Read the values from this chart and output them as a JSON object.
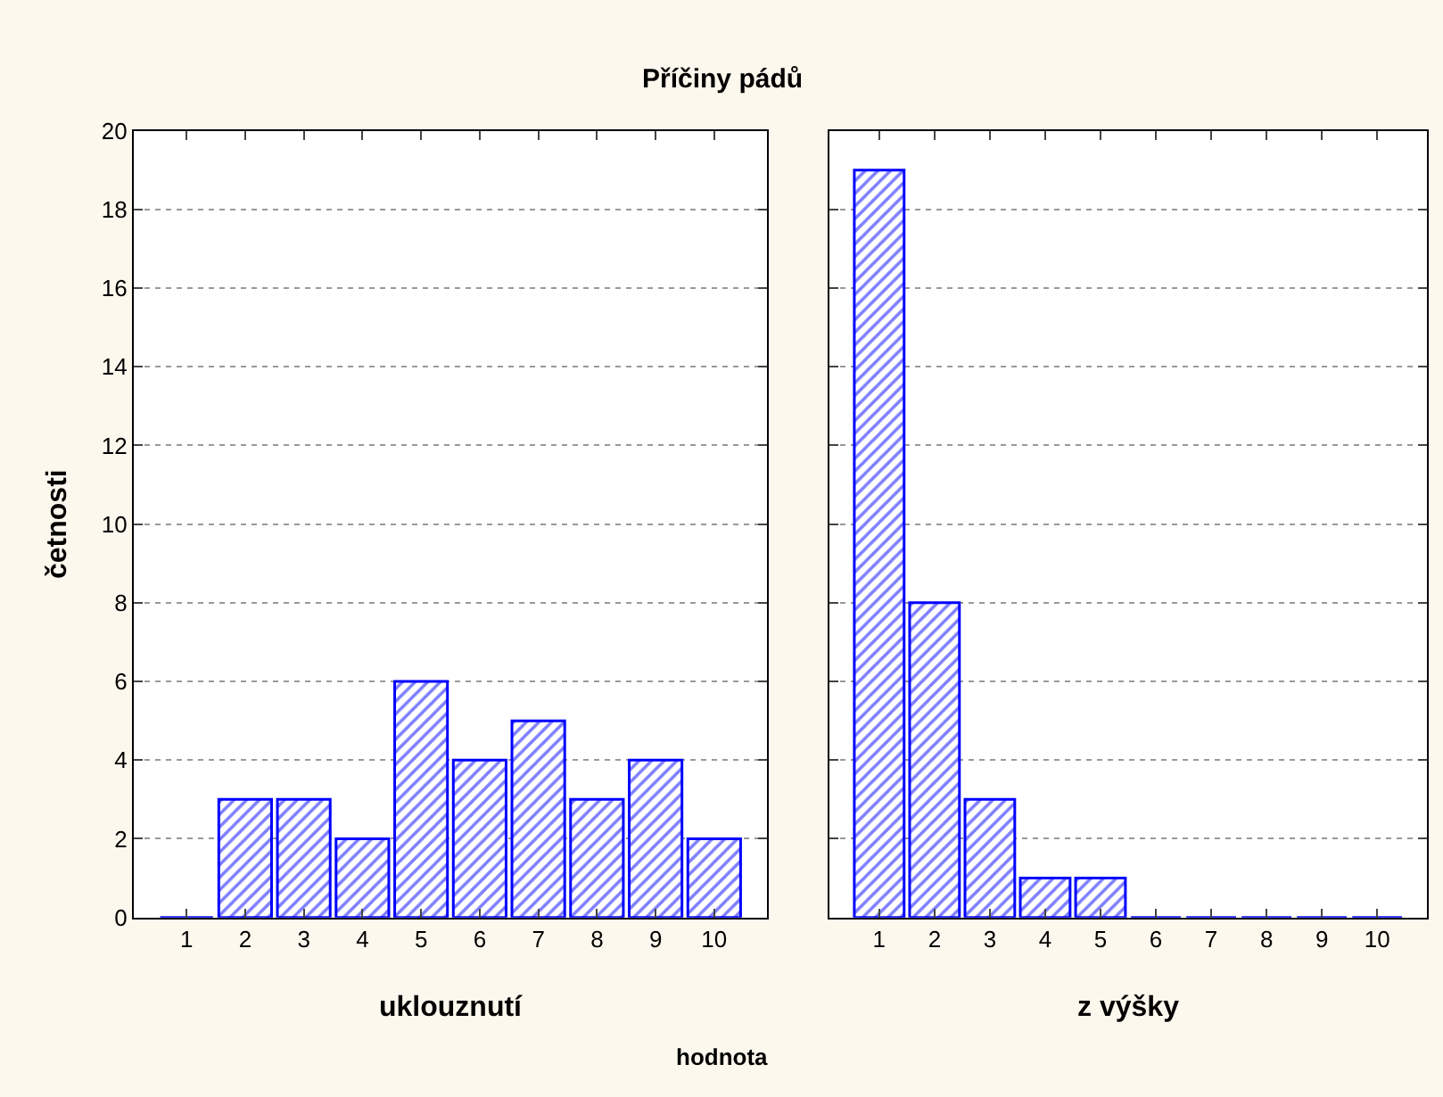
{
  "chart_data": [
    {
      "type": "bar",
      "title": "Příčiny pádů",
      "xlabel": "uklouznutí",
      "ylabel": "četnosti",
      "annotations": [
        "hodnota"
      ],
      "categories": [
        "1",
        "2",
        "3",
        "4",
        "5",
        "6",
        "7",
        "8",
        "9",
        "10"
      ],
      "values": [
        0,
        3,
        3,
        2,
        6,
        4,
        5,
        3,
        4,
        2
      ],
      "color": "#0000ff",
      "ylim": [
        0,
        20
      ],
      "yticks": [
        0,
        2,
        4,
        6,
        8,
        10,
        12,
        14,
        16,
        18,
        20
      ],
      "grid": "y"
    },
    {
      "type": "bar",
      "xlabel": "z výšky",
      "categories": [
        "1",
        "2",
        "3",
        "4",
        "5",
        "6",
        "7",
        "8",
        "9",
        "10"
      ],
      "values": [
        19,
        8,
        3,
        1,
        1,
        0,
        0,
        0,
        0,
        0
      ],
      "color": "#0000ff",
      "ylim": [
        0,
        20
      ],
      "yticks": [
        0,
        2,
        4,
        6,
        8,
        10,
        12,
        14,
        16,
        18,
        20
      ],
      "grid": "y",
      "tick_labels": "x"
    }
  ]
}
